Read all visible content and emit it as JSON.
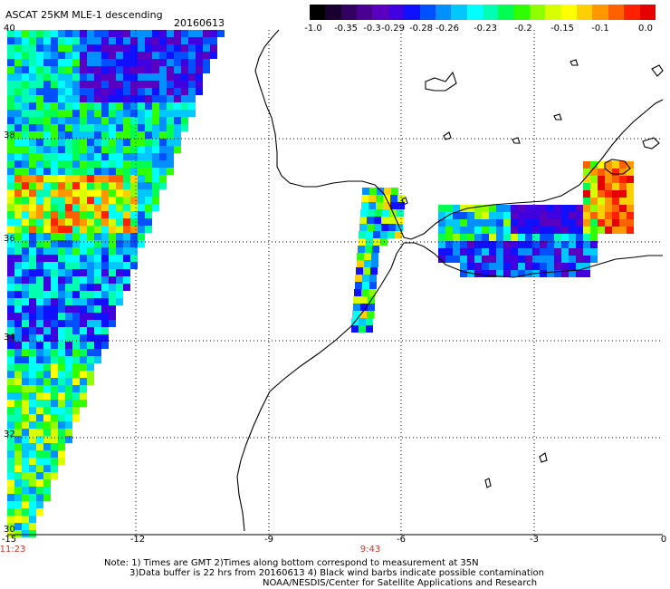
{
  "header": {
    "title": "ASCAT 25KM MLE-1 descending",
    "date": "20160613"
  },
  "colorbar": {
    "colors": [
      "#000000",
      "#1a0030",
      "#320060",
      "#4a0090",
      "#5a00c0",
      "#4000e0",
      "#1010ff",
      "#0050ff",
      "#0090ff",
      "#00c8ff",
      "#00ffff",
      "#00ffb0",
      "#00ff50",
      "#30ff00",
      "#90ff00",
      "#d8ff00",
      "#ffff00",
      "#ffd000",
      "#ff9800",
      "#ff6000",
      "#ff2000",
      "#e60000"
    ],
    "ticks": [
      "-1.0",
      "-0.35",
      "-0.3",
      "-0.29",
      "-0.28",
      "-0.26",
      "-0.23",
      "-0.2",
      "-0.15",
      "-0.1",
      "0.0"
    ]
  },
  "axes": {
    "lon_labels": [
      "-15",
      "-12",
      "-9",
      "-6",
      "-3",
      "0"
    ],
    "lat_labels": [
      "36",
      "34",
      "32",
      "30"
    ],
    "lat_top": "40",
    "lat_38": "38"
  },
  "times": {
    "left": "11:23",
    "middle": "9:43"
  },
  "notes": {
    "line1": "Note: 1) Times are GMT 2)Times along bottom correspond to measurement at 35N",
    "line2": "3)Data buffer is 22 hrs from 20160613 4) Black wind barbs indicate possible contamination",
    "line3": "NOAA/NESDIS/Center for Satellite Applications and Research"
  }
}
